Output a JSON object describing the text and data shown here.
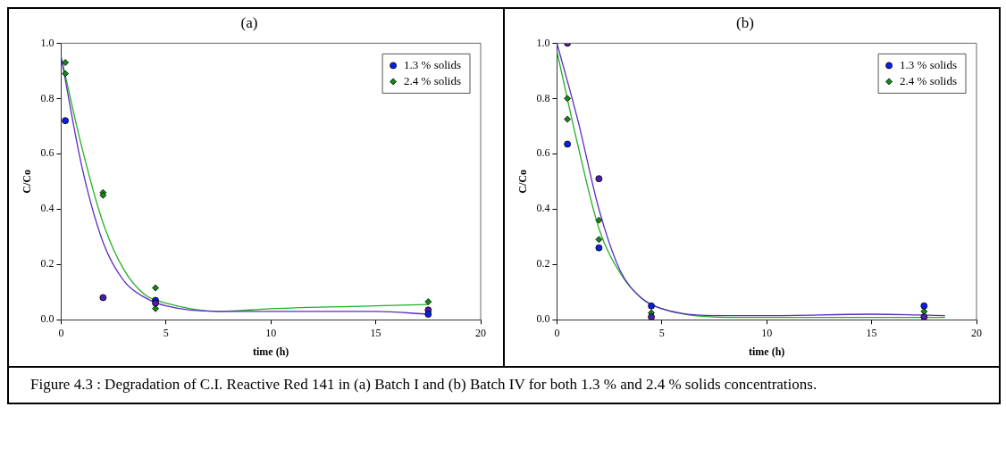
{
  "chart_data": [
    {
      "type": "scatter",
      "title": "(a)",
      "xlabel": "time (h)",
      "ylabel": "C/Co",
      "xlim": [
        0,
        20
      ],
      "xticks": [
        0,
        5,
        10,
        15,
        20
      ],
      "ylim": [
        0,
        1
      ],
      "yticks": [
        {
          "value": 0,
          "label": "0.0"
        },
        {
          "value": 0.2,
          "label": "0.2"
        },
        {
          "value": 0.4,
          "label": "0.4"
        },
        {
          "value": 0.6,
          "label": "0.6"
        },
        {
          "value": 0.8,
          "label": "0.8"
        },
        {
          "value": 1,
          "label": "1.0"
        }
      ],
      "grid": false,
      "legend": "top right",
      "series": [
        {
          "name": "1.3 % solids",
          "color": "#0a1ee6",
          "marker": "circle",
          "x": [
            0.2,
            2,
            4.5,
            4.5,
            17.5,
            17.5
          ],
          "values": [
            0.72,
            0.08,
            0.07,
            0.06,
            0.035,
            0.02
          ],
          "colors": [
            "#0a1ee6",
            "#4b1fa8",
            "#0a1ee6",
            "#4b1fa8",
            "#4b1fa8",
            "#0a1ee6"
          ]
        },
        {
          "name": "2.4 % solids",
          "color": "#128a12",
          "marker": "diamond",
          "x": [
            0.2,
            0.2,
            2,
            2,
            4.5,
            4.5,
            17.5
          ],
          "values": [
            0.93,
            0.89,
            0.46,
            0.45,
            0.115,
            0.04,
            0.065
          ]
        },
        {
          "type": "line",
          "color": "#5a2bc4",
          "marker": "none",
          "x": [
            0,
            1,
            2,
            3,
            4,
            5,
            7.5,
            10,
            15,
            17.5
          ],
          "values": [
            0.95,
            0.55,
            0.28,
            0.14,
            0.08,
            0.05,
            0.03,
            0.03,
            0.03,
            0.02
          ]
        },
        {
          "type": "line",
          "color": "#22b022",
          "marker": "none",
          "x": [
            0,
            1,
            2,
            3,
            4,
            5,
            7.5,
            10,
            15,
            17.5
          ],
          "values": [
            0.95,
            0.62,
            0.35,
            0.18,
            0.09,
            0.06,
            0.03,
            0.04,
            0.05,
            0.055
          ]
        }
      ]
    },
    {
      "type": "scatter",
      "title": "(b)",
      "xlabel": "time (h)",
      "ylabel": "C/Co",
      "xlim": [
        0,
        20
      ],
      "xticks": [
        0,
        5,
        10,
        15,
        20
      ],
      "ylim": [
        0,
        1
      ],
      "yticks": [
        {
          "value": 0,
          "label": "0.0"
        },
        {
          "value": 0.2,
          "label": "0.2"
        },
        {
          "value": 0.4,
          "label": "0.4"
        },
        {
          "value": 0.6,
          "label": "0.6"
        },
        {
          "value": 0.8,
          "label": "0.8"
        },
        {
          "value": 1,
          "label": "1.0"
        }
      ],
      "grid": false,
      "legend": "top right",
      "annotations": [
        "Figure 4.3 : Degradation of C.I. Reactive Red 141 in (a) Batch I and (b) Batch IV for both 1.3 % and 2.4 % solids concentrations."
      ],
      "series": [
        {
          "name": "1.3 % solids",
          "color": "#0a1ee6",
          "marker": "circle",
          "x": [
            0.5,
            0.5,
            2,
            2,
            4.5,
            4.5,
            17.5,
            17.5
          ],
          "values": [
            1.0,
            0.635,
            0.51,
            0.26,
            0.05,
            0.01,
            0.05,
            0.01
          ],
          "colors": [
            "#4b1fa8",
            "#0a1ee6",
            "#4b1fa8",
            "#0a1ee6",
            "#0a1ee6",
            "#4b1fa8",
            "#0a1ee6",
            "#4b1fa8"
          ]
        },
        {
          "name": "2.4 % solids",
          "color": "#128a12",
          "marker": "diamond",
          "x": [
            0.5,
            0.5,
            2,
            2,
            4.5,
            17.5
          ],
          "values": [
            0.8,
            0.725,
            0.36,
            0.29,
            0.025,
            0.03
          ]
        },
        {
          "type": "line",
          "color": "#5a2bc4",
          "marker": "none",
          "x": [
            0,
            1,
            2,
            3,
            4,
            5,
            7.5,
            10,
            15,
            18.5
          ],
          "values": [
            1.0,
            0.72,
            0.4,
            0.18,
            0.08,
            0.04,
            0.015,
            0.015,
            0.02,
            0.015
          ]
        },
        {
          "type": "line",
          "color": "#22b022",
          "marker": "none",
          "x": [
            0,
            1,
            2,
            3,
            4,
            5,
            7.5,
            10,
            15,
            18.5
          ],
          "values": [
            0.97,
            0.63,
            0.33,
            0.17,
            0.08,
            0.04,
            0.01,
            0.008,
            0.008,
            0.008
          ]
        }
      ]
    }
  ]
}
